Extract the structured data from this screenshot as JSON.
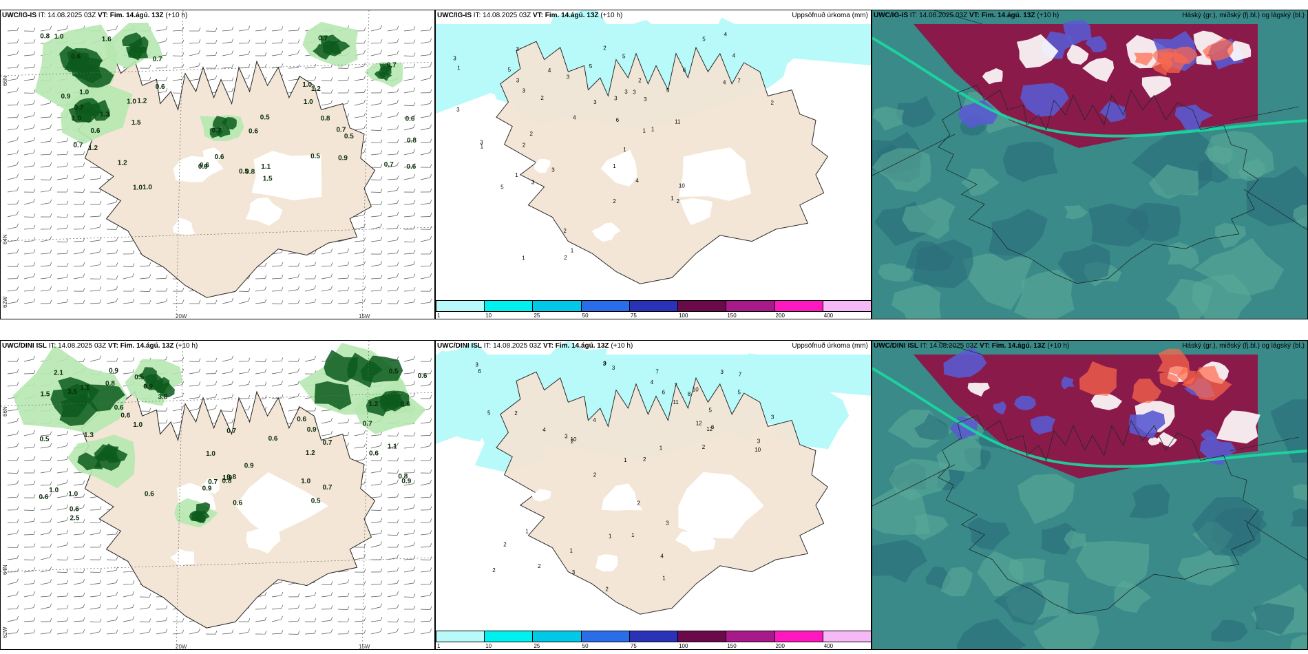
{
  "wind_panels": [
    {
      "model": "UWC/IG-IS",
      "title_rest": " IT: 14.08.2025 03Z ",
      "vt": "VT: Fim. 14.ágú. 13Z",
      "lead": " (+10 h)",
      "lon_labels": [
        "20W",
        "15W"
      ],
      "lat_labels": [
        "66N",
        "64N",
        "62W"
      ],
      "values": [
        "0.6",
        "0.9",
        "1.0",
        "1.5",
        "1.0",
        "0.6",
        "1.2",
        "1.0",
        "0.7",
        "1.0",
        "1.2",
        "1.6",
        "0.8",
        "1.0",
        "0.7",
        "1.2",
        "1.3",
        "0.6",
        "0.7",
        "1.0",
        "1.5",
        "0.7",
        "0.8",
        "0.6",
        "1.1",
        "0.6",
        "0.5",
        "0.6",
        "0.5",
        "0.9",
        "0.7",
        "0.5",
        "0.5",
        "0.8",
        "0.7",
        "1.0",
        "1.2",
        "0.7",
        "0.8",
        "0.9",
        "1.0",
        "0.6",
        "0.6",
        "0.7"
      ]
    },
    {
      "model": "UWC/DINI ISL",
      "title_rest": " IT: 14.08.2025 03Z ",
      "vt": "VT: Fim. 14.ágú. 13Z",
      "lead": " (+10 h)",
      "lon_labels": [
        "20W",
        "15W"
      ],
      "lat_labels": [
        "66N",
        "64N",
        "62W"
      ],
      "values": [
        "0.8",
        "0.9",
        "3.8",
        "1.1",
        "0.6",
        "1.5",
        "2.1",
        "1.3",
        "0.6",
        "3.5",
        "2.5",
        "1.0",
        "0.6",
        "1.0",
        "0.5",
        "1.0",
        "0.6",
        "0.5",
        "0.9",
        "0.6",
        "1.0",
        "0.9",
        "0.7",
        "0.6",
        "0.8",
        "0.6",
        "1.9",
        "0.7",
        "0.8",
        "0.9",
        "0.5",
        "0.6",
        "1.2",
        "0.8",
        "1.0",
        "0.6",
        "0.9",
        "0.6",
        "0.6",
        "0.7",
        "0.5",
        "1.2",
        "0.7",
        "0.9",
        "1.1",
        "0.7"
      ]
    }
  ],
  "precip_panels": [
    {
      "model": "UWC/IG-IS",
      "title_rest": " IT: 14.08.2025 03Z ",
      "vt": "VT: Fim. 14.ágú. 13Z",
      "lead": " (+10 h)",
      "right_title": "Uppsöfnuð úrkoma (mm)",
      "values": [
        "1",
        "7",
        "4",
        "6",
        "5",
        "3",
        "3",
        "4",
        "2",
        "3",
        "4",
        "5",
        "3",
        "3",
        "5",
        "3",
        "3",
        "2",
        "5",
        "6",
        "4",
        "5",
        "3",
        "11",
        "4",
        "3",
        "2",
        "3",
        "3",
        "2",
        "2",
        "10",
        "5",
        "3",
        "4",
        "3",
        "1",
        "1",
        "1",
        "2",
        "1",
        "1",
        "1",
        "2",
        "2",
        "3",
        "1",
        "2",
        "1",
        "2",
        "1"
      ]
    },
    {
      "model": "UWC/DINI ISL",
      "title_rest": " IT: 14.08.2025 03Z ",
      "vt": "VT: Fim. 14.ágú. 13Z",
      "lead": " (+10 h)",
      "right_title": "Uppsöfnuð úrkoma (mm)",
      "values": [
        "9",
        "5",
        "3",
        "3",
        "10",
        "10",
        "12",
        "7",
        "6",
        "6",
        "4",
        "3",
        "4",
        "7",
        "8",
        "11",
        "6",
        "12",
        "7",
        "10",
        "5",
        "5",
        "3",
        "4",
        "3",
        "3",
        "2",
        "3",
        "2",
        "2",
        "4",
        "3",
        "2",
        "1",
        "2",
        "1",
        "3",
        "2",
        "1",
        "1",
        "2",
        "2",
        "1",
        "1",
        "2",
        "1",
        "2"
      ]
    }
  ],
  "colorbar": {
    "labels": [
      "1",
      "10",
      "25",
      "50",
      "75",
      "100",
      "150",
      "200",
      "400"
    ],
    "colors": [
      "#b8fafa",
      "#00f0f0",
      "#00c8e6",
      "#2a6de8",
      "#2a32b8",
      "#6a0a4a",
      "#a81a8a",
      "#ff18c0",
      "#f6b8f6"
    ]
  },
  "cloud_panels": [
    {
      "model": "UWC/IG-IS",
      "title_rest": " IT: 14.08.2025 03Z ",
      "vt": "VT: Fim. 14.ágú. 13Z",
      "lead": " (+10 h)",
      "right_title": "Háský (gr.), miðský (fj.bl.) og lágský (bl.)"
    },
    {
      "model": "UWC/DINI ISL",
      "title_rest": " IT: 14.08.2025 03Z ",
      "vt": "VT: Fim. 14.ágú. 13Z",
      "lead": " (+10 h)",
      "right_title": "Háský (gr.), miðský (fj.bl.) og lágský (bl.)"
    }
  ],
  "colors": {
    "land": "#f3e6d6",
    "glacier": "#ffffff",
    "green_light": "#b6e8b0",
    "green_dark": "#0c5a1c",
    "precip_light": "#b8fafa",
    "cloud_sea": "#3a8a8a",
    "cloud_high": "#8a1a4a",
    "cloud_mid": "#5a5ad0"
  }
}
